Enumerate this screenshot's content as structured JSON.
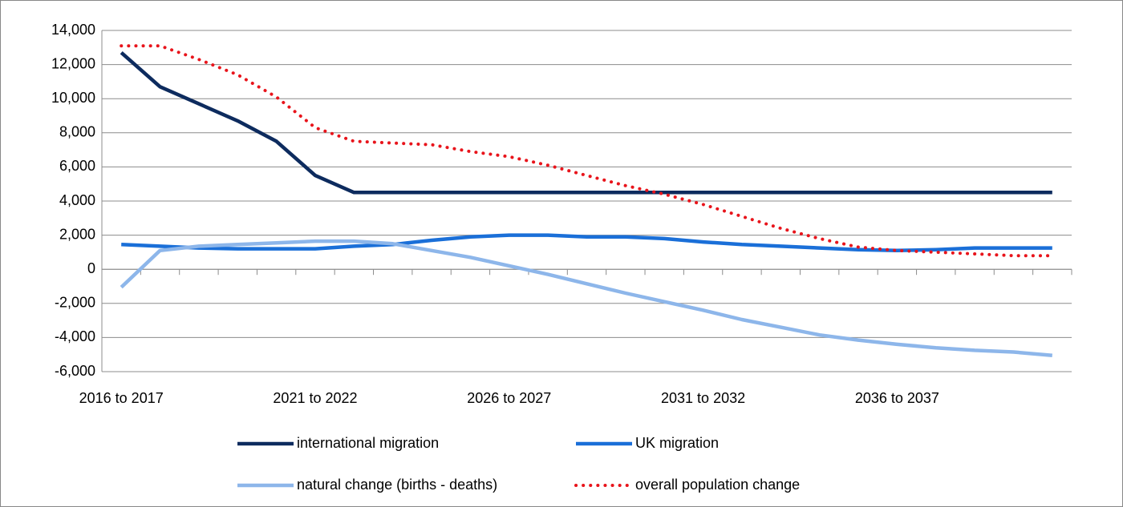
{
  "chart_data": {
    "type": "line",
    "categories": [
      "2016 to 2017",
      null,
      null,
      null,
      null,
      "2021 to 2022",
      null,
      null,
      null,
      null,
      "2026 to 2027",
      null,
      null,
      null,
      null,
      "2031 to 2032",
      null,
      null,
      null,
      null,
      "2036 to 2037",
      null,
      null,
      null,
      null
    ],
    "series": [
      {
        "name": "international migration",
        "color": "#0d2b5e",
        "dash": false,
        "values": [
          12700,
          10700,
          9700,
          8700,
          7500,
          5500,
          4500,
          4500,
          4500,
          4500,
          4500,
          4500,
          4500,
          4500,
          4500,
          4500,
          4500,
          4500,
          4500,
          4500,
          4500,
          4500,
          4500,
          4500,
          4500
        ]
      },
      {
        "name": "UK migration",
        "color": "#1a6fd8",
        "dash": false,
        "values": [
          1450,
          1350,
          1250,
          1200,
          1200,
          1200,
          1350,
          1450,
          1700,
          1900,
          2000,
          2000,
          1900,
          1900,
          1800,
          1600,
          1450,
          1350,
          1250,
          1150,
          1100,
          1150,
          1250,
          1250,
          1250
        ]
      },
      {
        "name": "natural change (births - deaths)",
        "color": "#8db6ea",
        "dash": false,
        "values": [
          -1050,
          1100,
          1350,
          1450,
          1550,
          1650,
          1650,
          1500,
          1100,
          700,
          200,
          -300,
          -850,
          -1400,
          -1900,
          -2400,
          -2950,
          -3400,
          -3850,
          -4150,
          -4400,
          -4600,
          -4750,
          -4850,
          -5050
        ]
      },
      {
        "name": "overall population change",
        "color": "#e8141b",
        "dash": true,
        "values": [
          13100,
          13100,
          12300,
          11400,
          10100,
          8300,
          7500,
          7400,
          7300,
          6900,
          6600,
          6100,
          5500,
          4900,
          4400,
          3800,
          3100,
          2400,
          1800,
          1300,
          1100,
          1000,
          900,
          800,
          800
        ]
      }
    ],
    "ylim": [
      -6000,
      14000
    ],
    "yticks": [
      {
        "value": -6000,
        "label": "-6,000"
      },
      {
        "value": -4000,
        "label": "-4,000"
      },
      {
        "value": -2000,
        "label": "-2,000"
      },
      0,
      {
        "value": 2000,
        "label": "2,000"
      },
      {
        "value": 4000,
        "label": "4,000"
      },
      {
        "value": 6000,
        "label": "6,000"
      },
      {
        "value": 8000,
        "label": "8,000"
      },
      {
        "value": 10000,
        "label": "10,000"
      },
      {
        "value": 12000,
        "label": "12,000"
      },
      {
        "value": 14000,
        "label": "14,000"
      }
    ],
    "grid": true,
    "legend": "bottom"
  }
}
